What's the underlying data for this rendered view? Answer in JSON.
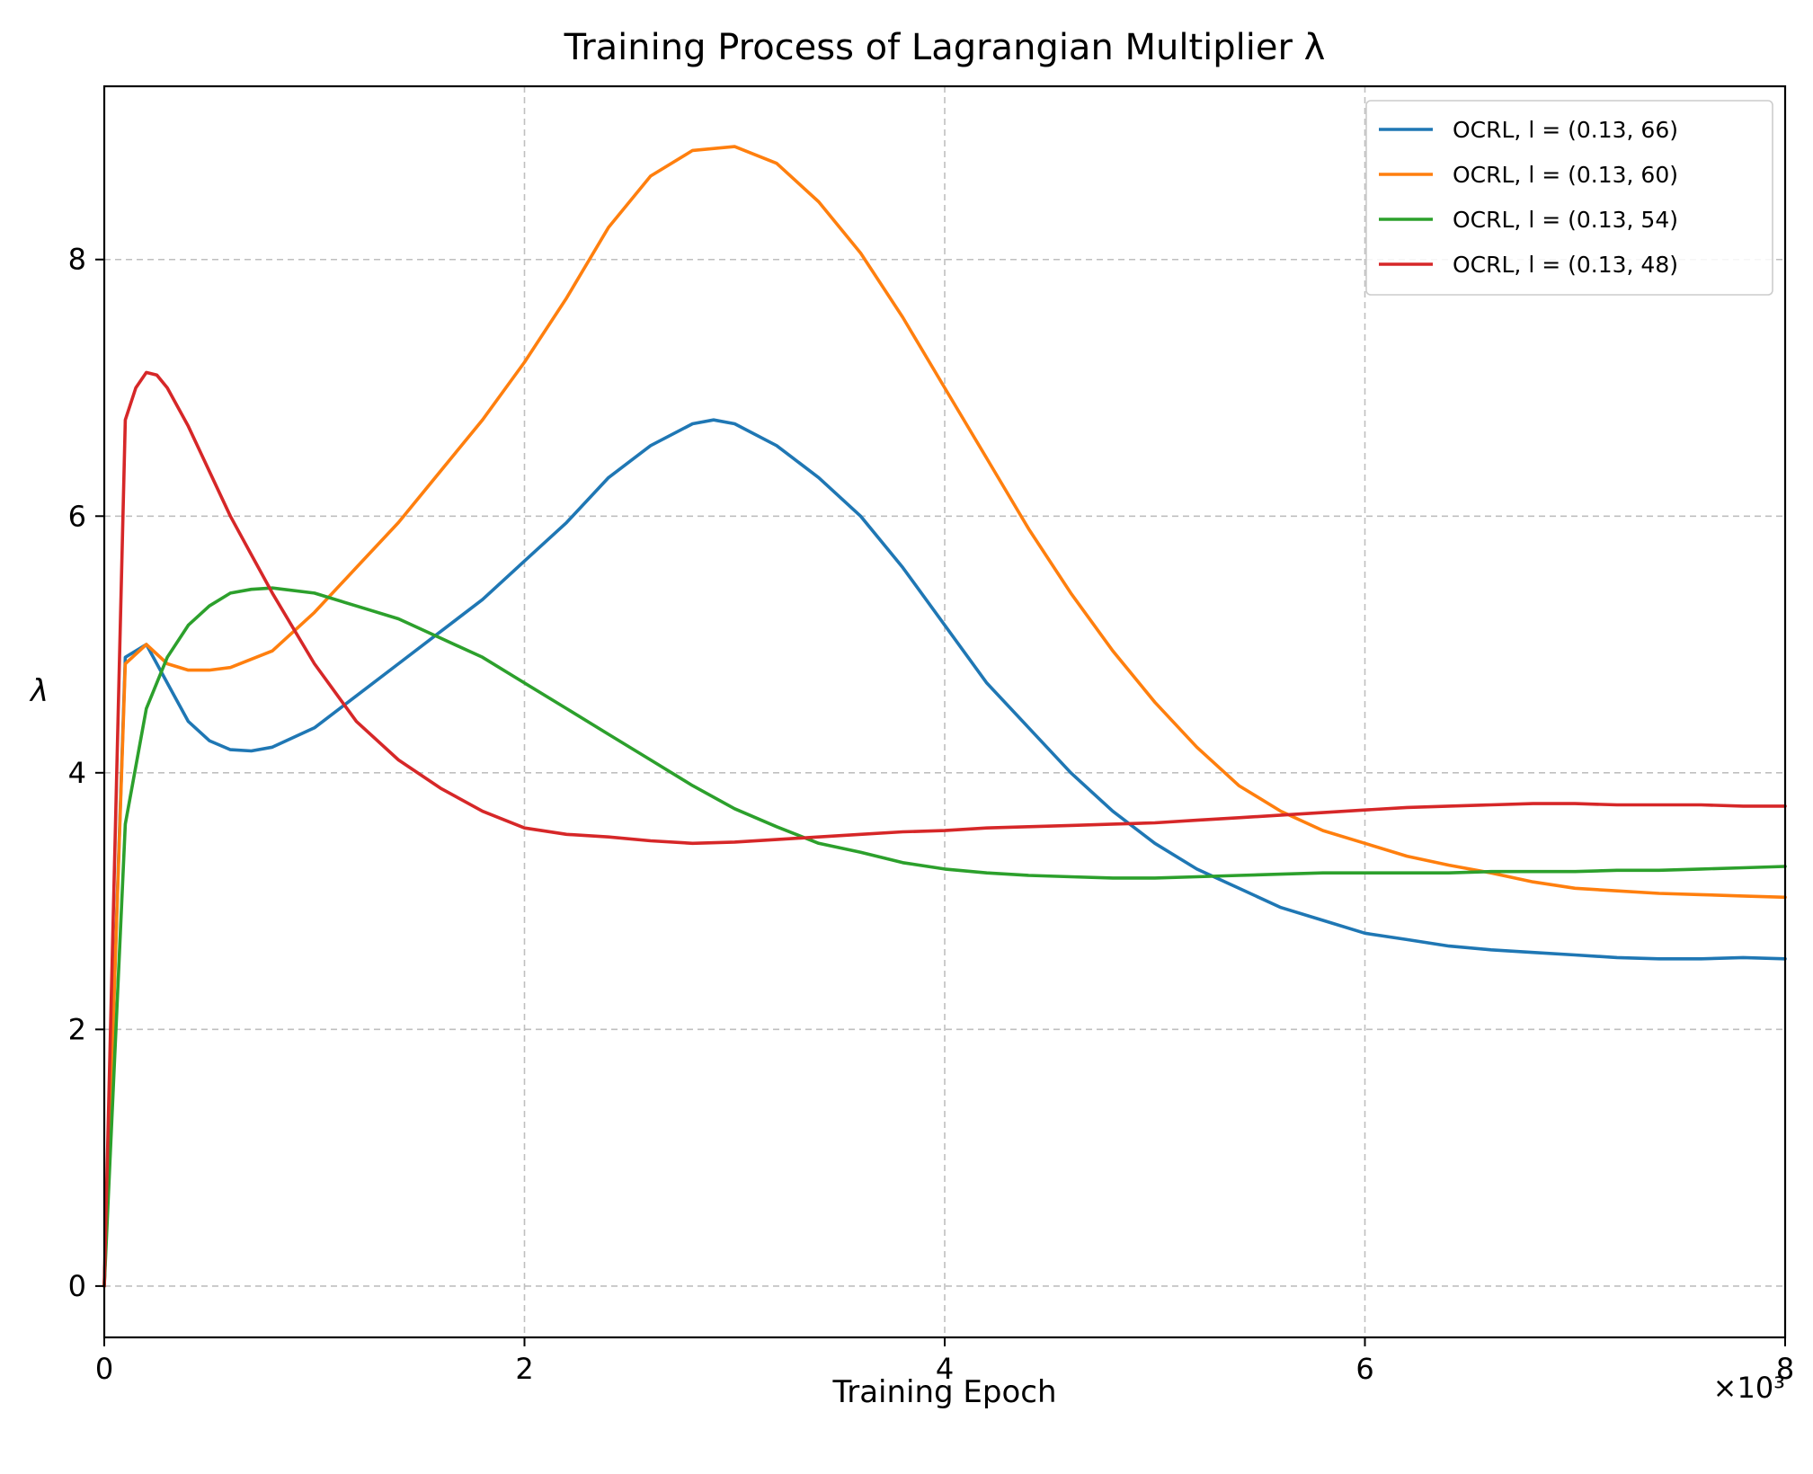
{
  "chart_data": {
    "type": "line",
    "title": "Training Process of Lagrangian Multiplier λ",
    "xlabel": "Training Epoch",
    "ylabel": "λ",
    "x_multiplier_label": "×10³",
    "xlim": [
      0,
      8
    ],
    "ylim": [
      -0.4,
      9.35
    ],
    "xticks": [
      0,
      2,
      4,
      6,
      8
    ],
    "yticks": [
      0,
      2,
      4,
      6,
      8
    ],
    "grid": true,
    "legend_position": "upper right",
    "series": [
      {
        "name": "OCRL, l = (0.13, 66)",
        "color": "#1f77b4",
        "x": [
          0,
          0.1,
          0.2,
          0.3,
          0.4,
          0.5,
          0.6,
          0.7,
          0.8,
          1.0,
          1.2,
          1.4,
          1.6,
          1.8,
          2.0,
          2.2,
          2.4,
          2.6,
          2.8,
          2.9,
          3.0,
          3.2,
          3.4,
          3.6,
          3.8,
          4.0,
          4.2,
          4.4,
          4.6,
          4.8,
          5.0,
          5.2,
          5.4,
          5.6,
          5.8,
          6.0,
          6.2,
          6.4,
          6.6,
          6.8,
          7.0,
          7.2,
          7.4,
          7.6,
          7.8,
          8.0
        ],
        "y": [
          0,
          4.9,
          5.0,
          4.7,
          4.4,
          4.25,
          4.18,
          4.17,
          4.2,
          4.35,
          4.6,
          4.85,
          5.1,
          5.35,
          5.65,
          5.95,
          6.3,
          6.55,
          6.72,
          6.75,
          6.72,
          6.55,
          6.3,
          6.0,
          5.6,
          5.15,
          4.7,
          4.35,
          4.0,
          3.7,
          3.45,
          3.25,
          3.1,
          2.95,
          2.85,
          2.75,
          2.7,
          2.65,
          2.62,
          2.6,
          2.58,
          2.56,
          2.55,
          2.55,
          2.56,
          2.55
        ]
      },
      {
        "name": "OCRL, l = (0.13, 60)",
        "color": "#ff7f0e",
        "x": [
          0,
          0.1,
          0.2,
          0.3,
          0.4,
          0.5,
          0.6,
          0.8,
          1.0,
          1.2,
          1.4,
          1.6,
          1.8,
          2.0,
          2.2,
          2.4,
          2.6,
          2.8,
          3.0,
          3.2,
          3.4,
          3.6,
          3.8,
          4.0,
          4.2,
          4.4,
          4.6,
          4.8,
          5.0,
          5.2,
          5.4,
          5.6,
          5.8,
          6.0,
          6.2,
          6.4,
          6.6,
          6.8,
          7.0,
          7.2,
          7.4,
          7.6,
          7.8,
          8.0
        ],
        "y": [
          0,
          4.85,
          5.0,
          4.85,
          4.8,
          4.8,
          4.82,
          4.95,
          5.25,
          5.6,
          5.95,
          6.35,
          6.75,
          7.2,
          7.7,
          8.25,
          8.65,
          8.85,
          8.88,
          8.75,
          8.45,
          8.05,
          7.55,
          7.0,
          6.45,
          5.9,
          5.4,
          4.95,
          4.55,
          4.2,
          3.9,
          3.7,
          3.55,
          3.45,
          3.35,
          3.28,
          3.22,
          3.15,
          3.1,
          3.08,
          3.06,
          3.05,
          3.04,
          3.03
        ]
      },
      {
        "name": "OCRL, l = (0.13, 54)",
        "color": "#2ca02c",
        "x": [
          0,
          0.1,
          0.2,
          0.3,
          0.4,
          0.5,
          0.6,
          0.7,
          0.8,
          1.0,
          1.2,
          1.4,
          1.6,
          1.8,
          2.0,
          2.2,
          2.4,
          2.6,
          2.8,
          3.0,
          3.2,
          3.4,
          3.6,
          3.8,
          4.0,
          4.2,
          4.4,
          4.6,
          4.8,
          5.0,
          5.2,
          5.4,
          5.6,
          5.8,
          6.0,
          6.2,
          6.4,
          6.6,
          6.8,
          7.0,
          7.2,
          7.4,
          7.6,
          7.8,
          8.0
        ],
        "y": [
          0,
          3.6,
          4.5,
          4.9,
          5.15,
          5.3,
          5.4,
          5.43,
          5.44,
          5.4,
          5.3,
          5.2,
          5.05,
          4.9,
          4.7,
          4.5,
          4.3,
          4.1,
          3.9,
          3.72,
          3.58,
          3.45,
          3.38,
          3.3,
          3.25,
          3.22,
          3.2,
          3.19,
          3.18,
          3.18,
          3.19,
          3.2,
          3.21,
          3.22,
          3.22,
          3.22,
          3.22,
          3.23,
          3.23,
          3.23,
          3.24,
          3.24,
          3.25,
          3.26,
          3.27
        ]
      },
      {
        "name": "OCRL, l = (0.13, 48)",
        "color": "#d62728",
        "x": [
          0,
          0.1,
          0.15,
          0.2,
          0.25,
          0.3,
          0.4,
          0.5,
          0.6,
          0.7,
          0.8,
          1.0,
          1.2,
          1.4,
          1.6,
          1.8,
          2.0,
          2.2,
          2.4,
          2.6,
          2.8,
          3.0,
          3.2,
          3.4,
          3.6,
          3.8,
          4.0,
          4.2,
          4.4,
          4.6,
          4.8,
          5.0,
          5.2,
          5.4,
          5.6,
          5.8,
          6.0,
          6.2,
          6.4,
          6.6,
          6.8,
          7.0,
          7.2,
          7.4,
          7.6,
          7.8,
          8.0
        ],
        "y": [
          0,
          6.75,
          7.0,
          7.12,
          7.1,
          7.0,
          6.7,
          6.35,
          6.0,
          5.7,
          5.4,
          4.85,
          4.4,
          4.1,
          3.88,
          3.7,
          3.57,
          3.52,
          3.5,
          3.47,
          3.45,
          3.46,
          3.48,
          3.5,
          3.52,
          3.54,
          3.55,
          3.57,
          3.58,
          3.59,
          3.6,
          3.61,
          3.63,
          3.65,
          3.67,
          3.69,
          3.71,
          3.73,
          3.74,
          3.75,
          3.76,
          3.76,
          3.75,
          3.75,
          3.75,
          3.74,
          3.74
        ]
      }
    ]
  }
}
